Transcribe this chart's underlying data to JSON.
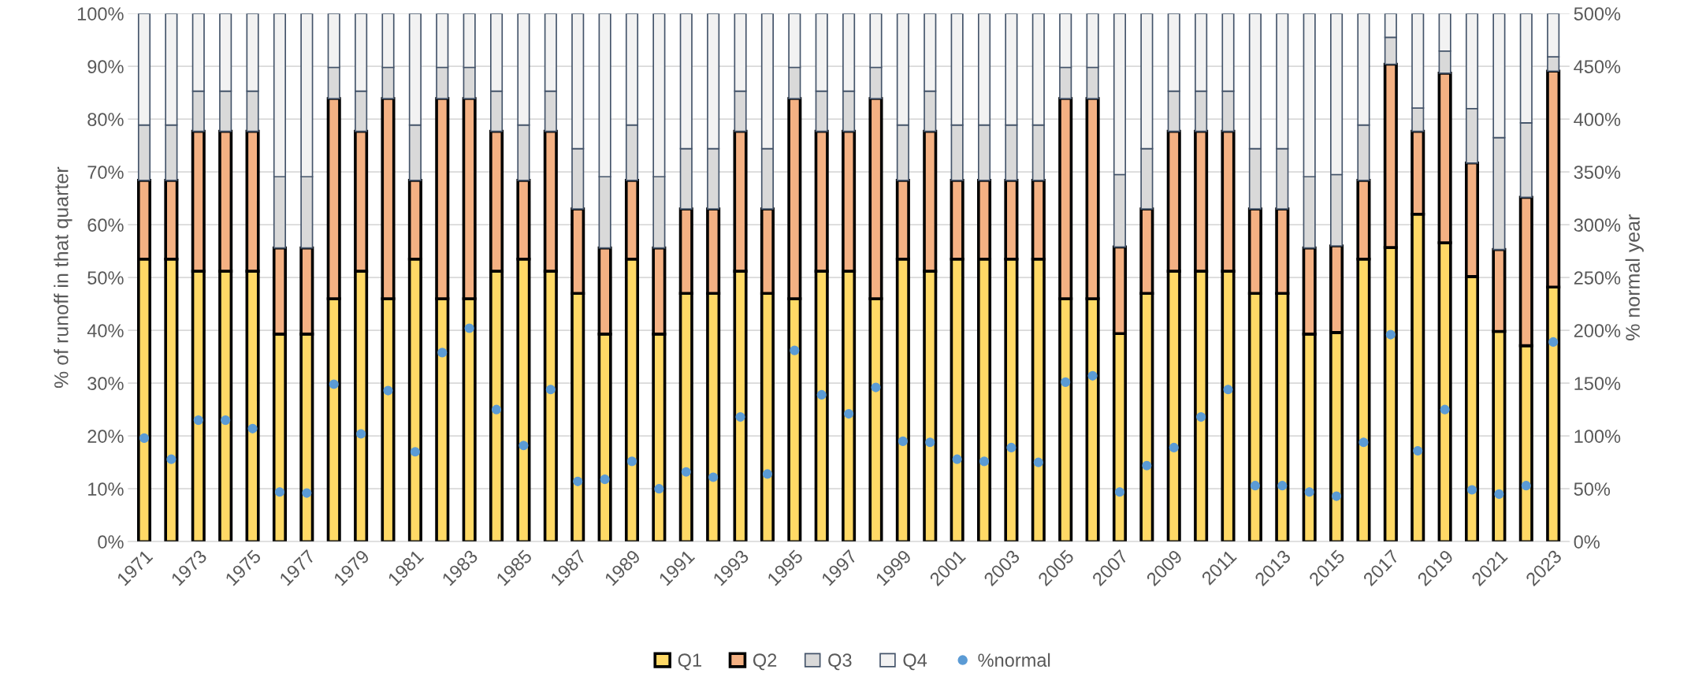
{
  "chart_data": {
    "type": "bar",
    "stacked": true,
    "categories": [
      "1971",
      null,
      "1973",
      null,
      "1975",
      null,
      "1977",
      null,
      "1979",
      null,
      "1981",
      null,
      "1983",
      null,
      "1985",
      null,
      "1987",
      null,
      "1989",
      null,
      "1991",
      null,
      "1993",
      null,
      "1995",
      null,
      "1997",
      null,
      "1999",
      null,
      "2001",
      null,
      "2003",
      null,
      "2005",
      null,
      "2007",
      null,
      "2009",
      null,
      "2011",
      null,
      "2013",
      null,
      "2015",
      null,
      "2017",
      null,
      "2019",
      null,
      "2021",
      null,
      "2023"
    ],
    "ylabel": "% of runoff in that quarter",
    "y2label": "% normal year",
    "ylim": [
      0,
      100
    ],
    "yticks": [
      {
        "value": 0,
        "label": "0%"
      },
      {
        "value": 10,
        "label": "10%"
      },
      {
        "value": 20,
        "label": "20%"
      },
      {
        "value": 30,
        "label": "30%"
      },
      {
        "value": 40,
        "label": "40%"
      },
      {
        "value": 50,
        "label": "50%"
      },
      {
        "value": 60,
        "label": "60%"
      },
      {
        "value": 70,
        "label": "70%"
      },
      {
        "value": 80,
        "label": "80%"
      },
      {
        "value": 90,
        "label": "90%"
      },
      {
        "value": 100,
        "label": "100%"
      }
    ],
    "y2lim": [
      0,
      500
    ],
    "y2ticks": [
      {
        "value": 0,
        "label": "0%"
      },
      {
        "value": 50,
        "label": "50%"
      },
      {
        "value": 100,
        "label": "100%"
      },
      {
        "value": 150,
        "label": "150%"
      },
      {
        "value": 200,
        "label": "200%"
      },
      {
        "value": 250,
        "label": "250%"
      },
      {
        "value": 300,
        "label": "300%"
      },
      {
        "value": 350,
        "label": "350%"
      },
      {
        "value": 400,
        "label": "400%"
      },
      {
        "value": 450,
        "label": "450%"
      },
      {
        "value": 500,
        "label": "500%"
      }
    ],
    "grid": "y",
    "legend": "bottom",
    "series": [
      {
        "name": "Q1",
        "color": "#ffd966",
        "values": [
          53.5,
          53.5,
          51.2,
          51.2,
          51.2,
          39.3,
          39.3,
          46.0,
          51.2,
          46.0,
          53.5,
          46.0,
          46.0,
          51.2,
          53.5,
          51.2,
          47.0,
          39.3,
          53.5,
          39.3,
          47.0,
          47.0,
          51.2,
          47.0,
          46.0,
          51.2,
          51.2,
          46.0,
          53.5,
          51.2,
          53.5,
          53.5,
          53.5,
          53.5,
          46.0,
          46.0,
          39.4,
          47.0,
          51.2,
          51.2,
          51.2,
          47.0,
          47.0,
          39.3,
          39.6,
          53.5,
          55.7,
          62.0,
          56.6,
          50.2,
          39.8,
          37.1,
          48.2
        ]
      },
      {
        "name": "Q2",
        "color": "#f4b183",
        "values": [
          14.9,
          14.9,
          26.5,
          26.5,
          26.5,
          16.3,
          16.3,
          37.9,
          26.5,
          37.9,
          14.9,
          37.9,
          37.9,
          26.5,
          14.9,
          26.5,
          16.0,
          16.3,
          14.9,
          16.3,
          16.0,
          16.0,
          26.5,
          16.0,
          37.9,
          26.5,
          26.5,
          37.9,
          14.9,
          26.5,
          14.9,
          14.9,
          14.9,
          14.9,
          37.9,
          37.9,
          16.4,
          16.0,
          26.5,
          26.5,
          26.5,
          16.0,
          16.0,
          16.3,
          16.4,
          14.9,
          34.7,
          15.7,
          32.1,
          21.5,
          15.5,
          28.1,
          40.9
        ]
      },
      {
        "name": "Q3",
        "color": "#d9d9d9",
        "values": [
          10.5,
          10.5,
          7.6,
          7.6,
          7.6,
          13.5,
          13.5,
          5.9,
          7.6,
          5.9,
          10.5,
          5.9,
          5.9,
          7.6,
          10.5,
          7.6,
          11.4,
          13.5,
          10.5,
          13.5,
          11.4,
          11.4,
          7.6,
          11.4,
          5.9,
          7.6,
          7.6,
          5.9,
          10.5,
          7.6,
          10.5,
          10.5,
          10.5,
          10.5,
          5.9,
          5.9,
          13.7,
          11.4,
          7.6,
          7.6,
          7.6,
          11.4,
          11.4,
          13.5,
          13.5,
          10.5,
          5.1,
          4.4,
          4.2,
          10.3,
          21.2,
          14.1,
          2.7
        ]
      },
      {
        "name": "Q4",
        "color": "#f2f2f2",
        "values": [
          21.1,
          21.1,
          14.7,
          14.7,
          14.7,
          30.9,
          30.9,
          10.2,
          14.7,
          10.2,
          21.1,
          10.2,
          10.2,
          14.7,
          21.1,
          14.7,
          25.6,
          30.9,
          21.1,
          30.9,
          25.6,
          25.6,
          14.7,
          25.6,
          10.2,
          14.7,
          14.7,
          10.2,
          21.1,
          14.7,
          21.1,
          21.1,
          21.1,
          21.1,
          10.2,
          10.2,
          30.5,
          25.6,
          14.7,
          14.7,
          14.7,
          25.6,
          25.6,
          30.9,
          30.5,
          21.1,
          4.5,
          17.9,
          7.1,
          18.0,
          23.5,
          20.7,
          8.2
        ]
      },
      {
        "name": "%normal",
        "type": "scatter",
        "axis": "y2",
        "color": "#5b9bd5",
        "marker": "circle",
        "values": [
          98,
          78,
          115,
          115,
          107,
          47,
          46,
          149,
          102,
          143,
          85,
          179,
          202,
          125,
          91,
          144,
          57,
          59,
          76,
          50,
          66,
          61,
          118,
          64,
          181,
          139,
          121,
          146,
          95,
          94,
          78,
          76,
          89,
          75,
          151,
          157,
          47,
          72,
          89,
          118,
          144,
          53,
          53,
          47,
          43,
          94,
          196,
          86,
          125,
          49,
          45,
          53,
          189
        ]
      }
    ]
  }
}
